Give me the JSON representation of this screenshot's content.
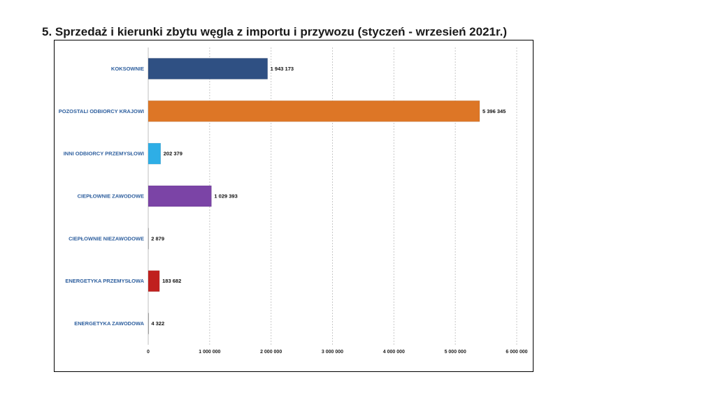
{
  "page": {
    "title": "5. Sprzedaż i kierunki zbytu węgla z importu i przywozu (styczeń - wrzesień 2021r.)"
  },
  "chart_data": {
    "type": "bar",
    "orientation": "horizontal",
    "title": "",
    "xlabel": "",
    "ylabel": "",
    "xlim": [
      0,
      6000000
    ],
    "grid": "vertical dashed",
    "categories": [
      "KOKSOWNIE",
      "POZOSTALI ODBIORCY KRAJOWI",
      "INNI ODBIORCY PRZEMYSŁOWI",
      "CIEPŁOWNIE ZAWODOWE",
      "CIEPŁOWNIE NIEZAWODOWE",
      "ENERGETYKA PRZEMYSŁOWA",
      "ENERGETYKA ZAWODOWA"
    ],
    "values": [
      1943173,
      5396345,
      202379,
      1029393,
      2879,
      183682,
      4322
    ],
    "value_labels": [
      "1 943 173",
      "5 396 345",
      "202 379",
      "1 029 393",
      "2 879",
      "183 682",
      "4 322"
    ],
    "colors": [
      "#2f5083",
      "#dd7626",
      "#2eaee6",
      "#7b44a6",
      "#9e9e9e",
      "#c0201e",
      "#7f7f7f"
    ],
    "x_ticks": [
      0,
      1000000,
      2000000,
      3000000,
      4000000,
      5000000,
      6000000
    ],
    "x_tick_labels": [
      "0",
      "1 000 000",
      "2 000 000",
      "3 000 000",
      "4 000 000",
      "5 000 000",
      "6 000 000"
    ]
  }
}
